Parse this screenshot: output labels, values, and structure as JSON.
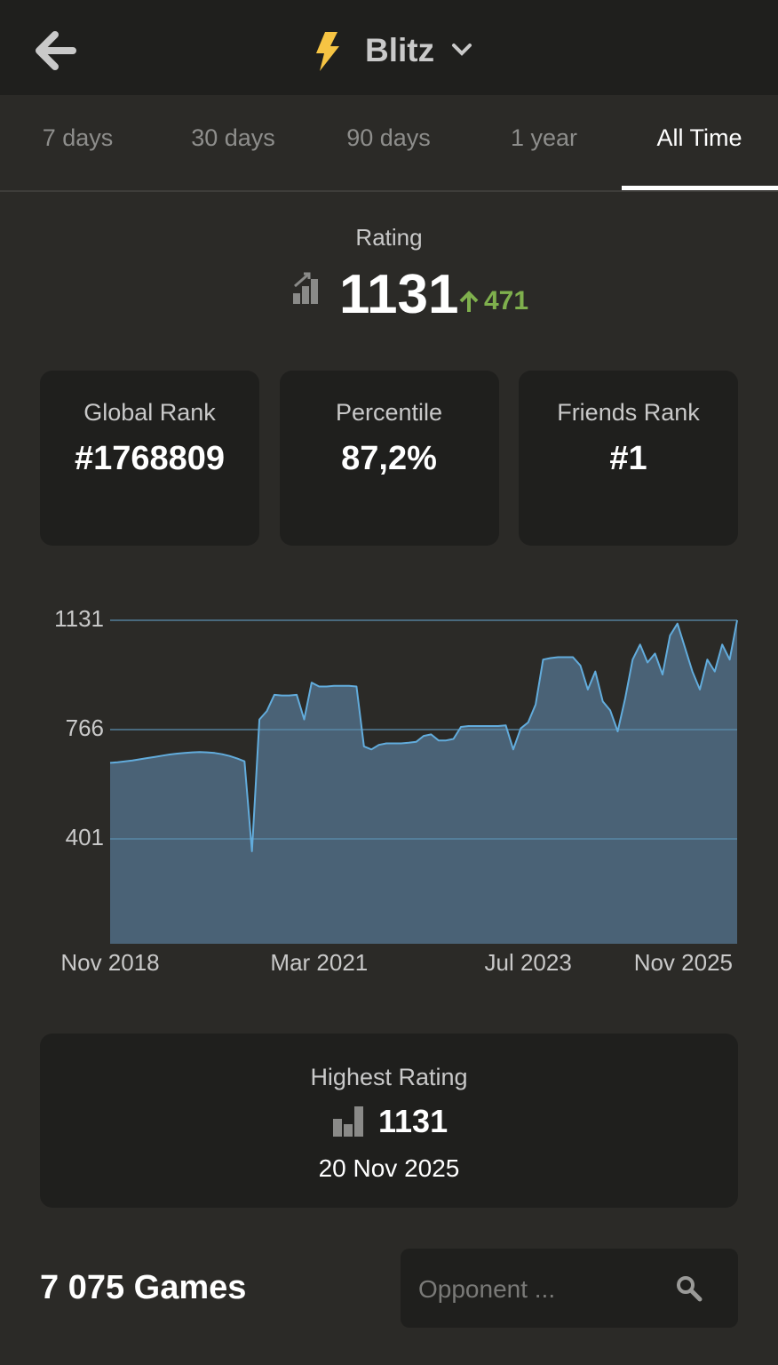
{
  "header": {
    "title": "Blitz"
  },
  "tabs": [
    "7 days",
    "30 days",
    "90 days",
    "1 year",
    "All Time"
  ],
  "rating": {
    "label": "Rating",
    "value": 1131,
    "change": 471
  },
  "stats": [
    {
      "label": "Global Rank",
      "value": "#1768809"
    },
    {
      "label": "Percentile",
      "value": "87,2%"
    },
    {
      "label": "Friends Rank",
      "value": "#1"
    }
  ],
  "chart_data": {
    "type": "area",
    "line_color": "#62acdc",
    "fill_color": "#4a6276",
    "grid": true,
    "ylim": [
      51,
      1131
    ],
    "yticks": [
      401,
      766,
      1131
    ],
    "xlim": [
      "2018-11",
      "2025-11"
    ],
    "xticks": [
      {
        "value": "2018-11",
        "label": "Nov 2018"
      },
      {
        "value": "2021-03",
        "label": "Mar 2021"
      },
      {
        "value": "2023-07",
        "label": "Jul 2023"
      },
      {
        "value": "2025-11",
        "label": "Nov 2025"
      }
    ],
    "x": [
      "2018-11",
      "2018-12",
      "2019-01",
      "2019-02",
      "2019-03",
      "2019-04",
      "2019-05",
      "2019-06",
      "2019-07",
      "2019-08",
      "2019-09",
      "2019-10",
      "2019-11",
      "2019-12",
      "2020-01",
      "2020-02",
      "2020-03",
      "2020-04",
      "2020-05",
      "2020-06",
      "2020-07",
      "2020-08",
      "2020-09",
      "2020-10",
      "2020-11",
      "2020-12",
      "2021-01",
      "2021-02",
      "2021-03",
      "2021-04",
      "2021-05",
      "2021-06",
      "2021-07",
      "2021-08",
      "2021-09",
      "2021-10",
      "2021-11",
      "2021-12",
      "2022-01",
      "2022-02",
      "2022-03",
      "2022-04",
      "2022-05",
      "2022-06",
      "2022-07",
      "2022-08",
      "2022-09",
      "2022-10",
      "2022-11",
      "2022-12",
      "2023-01",
      "2023-02",
      "2023-03",
      "2023-04",
      "2023-05",
      "2023-06",
      "2023-07",
      "2023-08",
      "2023-09",
      "2023-10",
      "2023-11",
      "2023-12",
      "2024-01",
      "2024-02",
      "2024-03",
      "2024-04",
      "2024-05",
      "2024-06",
      "2024-07",
      "2024-08",
      "2024-09",
      "2024-10",
      "2024-11",
      "2024-12",
      "2025-01",
      "2025-02",
      "2025-03",
      "2025-04",
      "2025-05",
      "2025-06",
      "2025-07",
      "2025-08",
      "2025-09",
      "2025-10",
      "2025-11"
    ],
    "values": [
      655,
      657,
      660,
      663,
      667,
      671,
      675,
      679,
      683,
      686,
      688,
      690,
      691,
      690,
      688,
      684,
      678,
      670,
      660,
      360,
      800,
      828,
      882,
      880,
      880,
      882,
      800,
      923,
      910,
      910,
      912,
      912,
      912,
      910,
      710,
      700,
      715,
      720,
      720,
      720,
      722,
      725,
      745,
      750,
      730,
      730,
      735,
      775,
      778,
      778,
      778,
      778,
      778,
      780,
      700,
      770,
      790,
      850,
      1000,
      1005,
      1008,
      1008,
      1008,
      980,
      900,
      960,
      860,
      830,
      760,
      870,
      1000,
      1050,
      990,
      1020,
      950,
      1080,
      1120,
      1040,
      960,
      900,
      1000,
      960,
      1050,
      1000,
      1131
    ]
  },
  "highest": {
    "label": "Highest Rating",
    "value": 1131,
    "date": "20 Nov 2025"
  },
  "games": "7 075 Games",
  "search_placeholder": "Opponent ..."
}
